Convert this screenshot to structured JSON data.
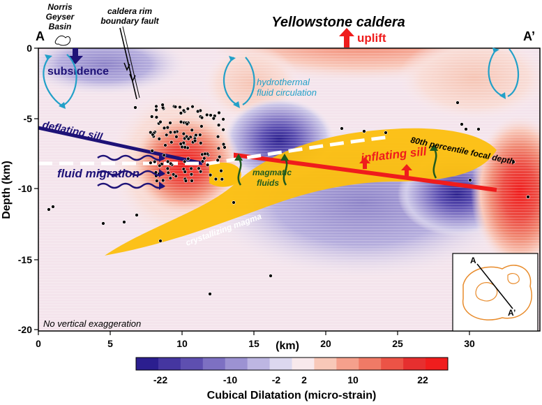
{
  "title": "Yellowstone caldera",
  "section_labels": {
    "start": "A",
    "end": "A’"
  },
  "top_labels": {
    "norris": [
      "Norris",
      "Geyser",
      "Basin"
    ],
    "fault": [
      "caldera rim",
      "boundary fault"
    ],
    "uplift": "uplift"
  },
  "annotations": {
    "subsidence": "subsidence",
    "hydrothermal": [
      "hydrothermal",
      "fluid circulation"
    ],
    "deflating_sill": "deflating sill",
    "fluid_migration": "fluid migration",
    "magmatic_fluids": [
      "magmatic",
      "fluids"
    ],
    "inflating_sill": "inflating sill",
    "percentile": "80th percentile focal depth",
    "crystallizing_magma": "crystallizing magma",
    "no_vertical_exaggeration": "No vertical exaggeration"
  },
  "axes": {
    "y_label": "Depth (km)",
    "x_label": "(km)",
    "x_ticks": [
      "0",
      "5",
      "10",
      "15",
      "20",
      "25",
      "30"
    ],
    "y_ticks": [
      "0",
      "-5",
      "-10",
      "-15",
      "-20"
    ]
  },
  "colorbar": {
    "title": "Cubical Dilatation (micro-strain)",
    "tick_labels": [
      "-22",
      "-10",
      "-2",
      "2",
      "10",
      "22"
    ],
    "colors": [
      "#2b1e8f",
      "#4536a0",
      "#5e4fb0",
      "#7d70c2",
      "#9c92d2",
      "#bdb6e2",
      "#dcd8ef",
      "#f8e9ec",
      "#f8c8b8",
      "#f5a08c",
      "#f07a66",
      "#ec5346",
      "#e62f2f",
      "#f01d1d"
    ]
  },
  "inset": {
    "start": "A",
    "end": "A’"
  },
  "colors": {
    "magma": "#fcbf0e",
    "deflate": "#1e1277",
    "inflate": "#ef1c1c",
    "circulation": "#22a0c8",
    "magmatic_arrow": "#1f5a1f"
  }
}
